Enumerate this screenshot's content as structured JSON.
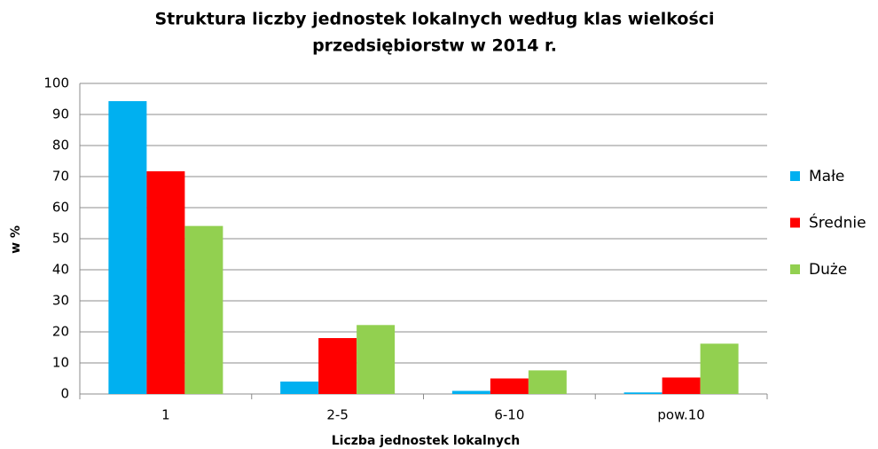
{
  "chart_data": {
    "type": "bar",
    "title": [
      "Struktura liczby jednostek lokalnych według klas wielkości",
      "przedsiębiorstw w 2014 r."
    ],
    "x_label": "Liczba jednostek lokalnych",
    "y_label": "w %",
    "categories": [
      "1",
      "2-5",
      "6-10",
      "pow.10"
    ],
    "series": [
      {
        "name": "Małe",
        "color": "#00b0f0",
        "values": [
          94.3,
          4,
          1,
          0.5
        ]
      },
      {
        "name": "Średnie",
        "color": "#ff0000",
        "values": [
          71.7,
          18,
          5,
          5.3
        ]
      },
      {
        "name": "Duże",
        "color": "#92d050",
        "values": [
          54.1,
          22.2,
          7.6,
          16.2
        ]
      }
    ],
    "ylim": [
      0,
      100
    ],
    "yticks": [
      0,
      10,
      20,
      30,
      40,
      50,
      60,
      70,
      80,
      90,
      100
    ],
    "grid": true,
    "legend": "right"
  }
}
